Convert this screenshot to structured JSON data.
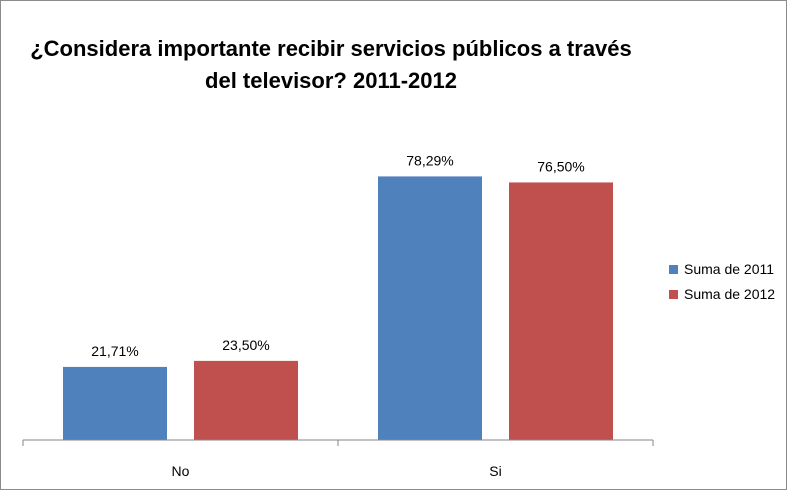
{
  "chart_data": {
    "type": "bar",
    "title": "¿Considera importante recibir servicios públicos a través del televisor? 2011-2012",
    "title_lines": [
      "¿Considera importante recibir servicios públicos a través",
      "del televisor? 2011-2012"
    ],
    "categories": [
      "No",
      "Si"
    ],
    "series": [
      {
        "name": "Suma de 2011",
        "values": [
          21.71,
          78.29
        ],
        "labels": [
          "21,71%",
          "78,29%"
        ],
        "color": "#4f81bd"
      },
      {
        "name": "Suma de 2012",
        "values": [
          23.5,
          76.5
        ],
        "labels": [
          "23,50%",
          "76,50%"
        ],
        "color": "#c0504d"
      }
    ],
    "ylim": [
      0,
      90
    ],
    "xlabel": "",
    "ylabel": "",
    "grid": false,
    "legend_position": "right"
  }
}
